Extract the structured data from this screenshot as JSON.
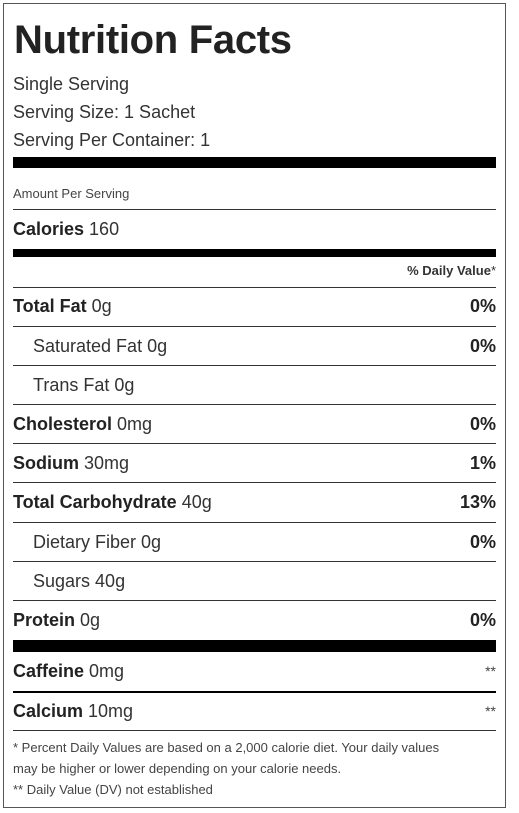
{
  "title": "Nutrition Facts",
  "serving": {
    "line1": "Single Serving",
    "line2": "Serving Size: 1 Sachet",
    "line3": "Serving Per Container: 1"
  },
  "amount_per_serving": "Amount Per Serving",
  "calories": {
    "label": "Calories",
    "value": "160"
  },
  "daily_value_header": "% Daily Value",
  "daily_value_star": "*",
  "nutrients": [
    {
      "name": "Total Fat",
      "amount": "0g",
      "dv": "0%"
    },
    {
      "name": "Saturated Fat",
      "amount": "0g",
      "dv": "0%"
    },
    {
      "name": "Trans Fat",
      "amount": "0g",
      "dv": ""
    },
    {
      "name": "Cholesterol",
      "amount": "0mg",
      "dv": "0%"
    },
    {
      "name": "Sodium",
      "amount": "30mg",
      "dv": "1%"
    },
    {
      "name": "Total Carbohydrate",
      "amount": "40g",
      "dv": "13%"
    },
    {
      "name": "Dietary Fiber",
      "amount": "0g",
      "dv": "0%"
    },
    {
      "name": "Sugars",
      "amount": "40g",
      "dv": ""
    },
    {
      "name": "Protein",
      "amount": "0g",
      "dv": "0%"
    }
  ],
  "extras": [
    {
      "name": "Caffeine",
      "amount": "0mg",
      "dv": "**"
    },
    {
      "name": "Calcium",
      "amount": "10mg",
      "dv": "**"
    }
  ],
  "footnotes": {
    "line1": "* Percent Daily Values are based on a 2,000 calorie diet. Your daily values",
    "line2": "may be higher or lower depending on your calorie needs.",
    "line3": "** Daily Value (DV) not established"
  }
}
